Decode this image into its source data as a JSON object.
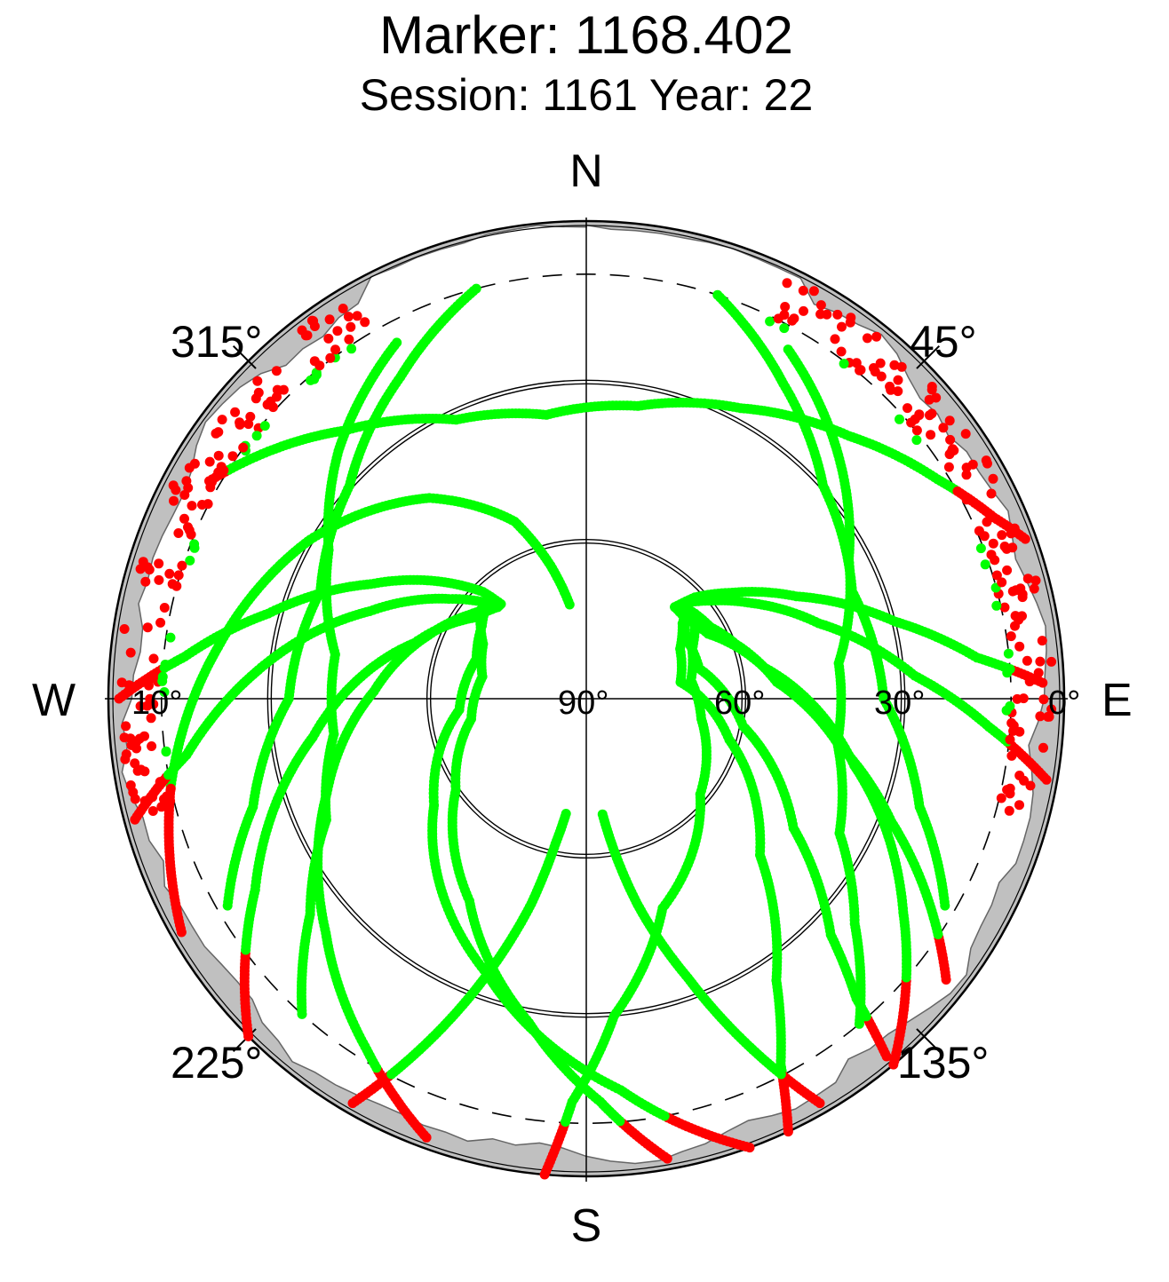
{
  "chart_data": {
    "type": "scatter",
    "projection": "polar-skyplot",
    "title": "Marker: 1168.402",
    "subtitle": "Session: 1161 Year: 22",
    "directions": {
      "north": "N",
      "south": "S",
      "east": "E",
      "west": "W"
    },
    "azimuth_labels": [
      {
        "azimuth": 315,
        "text": "315°"
      },
      {
        "azimuth": 45,
        "text": "45°"
      },
      {
        "azimuth": 225,
        "text": "225°"
      },
      {
        "azimuth": 135,
        "text": "135°"
      }
    ],
    "elevation_labels": [
      {
        "elevation": 90,
        "text": "90°"
      },
      {
        "elevation": 60,
        "text": "60°"
      },
      {
        "elevation": 30,
        "text": "30°"
      },
      {
        "elevation": 0,
        "text": "0°"
      },
      {
        "elevation": 10,
        "text": "10°",
        "side": "west"
      }
    ],
    "elevation_circles": [
      30,
      60
    ],
    "cutoff_elevation": 10,
    "colors": {
      "above_cutoff": "#00ff00",
      "below_cutoff": "#ff0000",
      "horizon_mask": "#c0c0c0",
      "grid": "#000000"
    },
    "horizon_mask_elevation_range": [
      0,
      5
    ],
    "tracks": [
      {
        "az": [
          300,
          318,
          335,
          352,
          10,
          28,
          45,
          58,
          66,
          70
        ],
        "el": [
          8,
          22,
          32,
          36,
          34,
          28,
          20,
          12,
          6,
          2
        ]
      },
      {
        "az": [
          240,
          258,
          278,
          300,
          322,
          338,
          345,
          350
        ],
        "el": [
          2,
          10,
          20,
          30,
          42,
          54,
          64,
          72
        ]
      },
      {
        "az": [
          200,
          212,
          228,
          250,
          272,
          292,
          306,
          316
        ],
        "el": [
          2,
          12,
          24,
          38,
          50,
          58,
          63,
          66
        ]
      },
      {
        "az": [
          170,
          178,
          190,
          210,
          235,
          260,
          282,
          298,
          310
        ],
        "el": [
          2,
          14,
          28,
          46,
          60,
          68,
          70,
          68,
          64
        ]
      },
      {
        "az": [
          160,
          175,
          200,
          235,
          265,
          290,
          305,
          314
        ],
        "el": [
          0,
          16,
          35,
          55,
          66,
          68,
          66,
          64
        ]
      },
      {
        "az": [
          128,
          120,
          112,
          100,
          85,
          70,
          60,
          52,
          45
        ],
        "el": [
          4,
          16,
          28,
          42,
          54,
          60,
          63,
          64,
          65
        ]
      },
      {
        "az": [
          140,
          138,
          134,
          122,
          100,
          75,
          58,
          50,
          46
        ],
        "el": [
          2,
          14,
          26,
          44,
          60,
          68,
          68,
          66,
          64
        ]
      },
      {
        "az": [
          155,
          152,
          146,
          132,
          106,
          80,
          62,
          52,
          47
        ],
        "el": [
          0,
          12,
          26,
          46,
          62,
          72,
          70,
          67,
          64
        ]
      },
      {
        "az": [
          185,
          182,
          175,
          160,
          130,
          100,
          80,
          65,
          55
        ],
        "el": [
          0,
          14,
          30,
          48,
          62,
          68,
          70,
          68,
          65
        ]
      },
      {
        "az": [
          100,
          94,
          86,
          72,
          60,
          52,
          46,
          44
        ],
        "el": [
          2,
          14,
          28,
          44,
          54,
          60,
          64,
          66
        ]
      },
      {
        "az": [
          88,
          84,
          76,
          64,
          54,
          47,
          44
        ],
        "el": [
          4,
          16,
          30,
          46,
          56,
          62,
          66
        ]
      },
      {
        "az": [
          270,
          276,
          285,
          298,
          310,
          316,
          318
        ],
        "el": [
          2,
          14,
          28,
          44,
          56,
          62,
          66
        ]
      },
      {
        "az": [
          255,
          262,
          275,
          292,
          306,
          314,
          317
        ],
        "el": [
          2,
          14,
          28,
          46,
          58,
          64,
          66
        ]
      },
      {
        "az": [
          225,
          240,
          262,
          288,
          306,
          316
        ],
        "el": [
          0,
          18,
          38,
          56,
          64,
          66
        ]
      },
      {
        "az": [
          140,
          124,
          104,
          80,
          62,
          50,
          44
        ],
        "el": [
          0,
          18,
          38,
          56,
          64,
          66,
          66
        ]
      },
      {
        "az": [
          210,
          205,
          200,
          195,
          192,
          190
        ],
        "el": [
          2,
          18,
          34,
          50,
          62,
          68
        ]
      },
      {
        "az": [
          150,
          155,
          160,
          166,
          170,
          172
        ],
        "el": [
          2,
          18,
          34,
          50,
          62,
          68
        ]
      },
      {
        "az": [
          332,
          315,
          300,
          280,
          262,
          245,
          232,
          222
        ],
        "el": [
          14,
          24,
          34,
          42,
          42,
          36,
          24,
          10
        ]
      },
      {
        "az": [
          30,
          46,
          62,
          82,
          100,
          118,
          130,
          140
        ],
        "el": [
          14,
          24,
          34,
          42,
          42,
          36,
          24,
          10
        ]
      },
      {
        "az": [
          345,
          330,
          312,
          292,
          270,
          252,
          240
        ],
        "el": [
          10,
          20,
          30,
          36,
          34,
          24,
          12
        ]
      },
      {
        "az": [
          18,
          32,
          48,
          68,
          90,
          108,
          120
        ],
        "el": [
          10,
          20,
          30,
          36,
          34,
          24,
          12
        ]
      }
    ],
    "low_elevation_points_west": {
      "az_range": [
        255,
        330
      ],
      "el_range": [
        0,
        10
      ]
    },
    "low_elevation_points_east": {
      "az_range": [
        25,
        105
      ],
      "el_range": [
        0,
        10
      ]
    }
  }
}
